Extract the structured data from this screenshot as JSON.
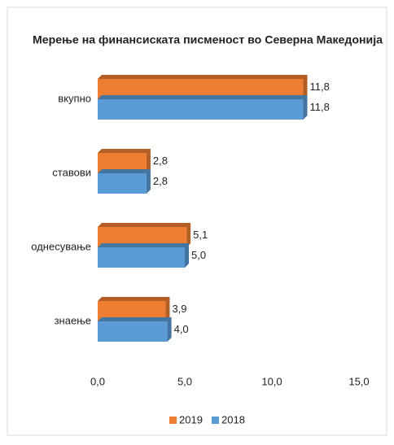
{
  "chart_data": {
    "type": "barh",
    "title": "Мерење на финансиската писменост во Северна Македонија",
    "categories": [
      "вкупно",
      "ставови",
      "однесување",
      "знаење"
    ],
    "series": [
      {
        "name": "2019",
        "color": "#ed7d31",
        "values": [
          11.8,
          2.8,
          5.1,
          3.9
        ],
        "value_labels": [
          "11,8",
          "2,8",
          "5,1",
          "3,9"
        ]
      },
      {
        "name": "2018",
        "color": "#5b9bd5",
        "values": [
          11.8,
          2.8,
          5.0,
          4.0
        ],
        "value_labels": [
          "11,8",
          "2,8",
          "5,0",
          "4,0"
        ]
      }
    ],
    "xlim": [
      0,
      15
    ],
    "xticks": [
      {
        "value": 0,
        "label": "0,0"
      },
      {
        "value": 5,
        "label": "5,0"
      },
      {
        "value": 10,
        "label": "10,0"
      },
      {
        "value": 15,
        "label": "15,0"
      }
    ],
    "legend": "bottom"
  }
}
